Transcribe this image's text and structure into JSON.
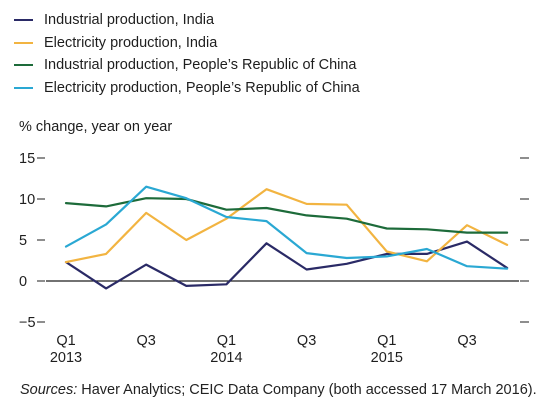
{
  "chart_data": {
    "type": "line",
    "ylabel": "% change, year on year",
    "ylim": [
      -5,
      15
    ],
    "y_ticks": [
      "15",
      "10",
      "5",
      "0",
      "−5"
    ],
    "y_tick_values": [
      15,
      10,
      5,
      0,
      -5
    ],
    "x": [
      "2013Q1",
      "2013Q2",
      "2013Q3",
      "2013Q4",
      "2014Q1",
      "2014Q2",
      "2014Q3",
      "2014Q4",
      "2015Q1",
      "2015Q2",
      "2015Q3",
      "2015Q4"
    ],
    "x_tick_labels": [
      {
        "label": "Q1",
        "year": "2013",
        "index": 0
      },
      {
        "label": "Q3",
        "year": "",
        "index": 2
      },
      {
        "label": "Q1",
        "year": "2014",
        "index": 4
      },
      {
        "label": "Q3",
        "year": "",
        "index": 6
      },
      {
        "label": "Q1",
        "year": "2015",
        "index": 8
      },
      {
        "label": "Q3",
        "year": "",
        "index": 10
      }
    ],
    "series": [
      {
        "name": "Industrial production, India",
        "color": "#2a2a66",
        "values": [
          2.3,
          -0.9,
          2.0,
          -0.6,
          -0.4,
          4.6,
          1.4,
          2.1,
          3.3,
          3.3,
          4.8,
          1.6
        ]
      },
      {
        "name": "Electricity production, India",
        "color": "#f2b441",
        "values": [
          2.3,
          3.3,
          8.3,
          5.0,
          7.6,
          11.2,
          9.4,
          9.3,
          3.6,
          2.4,
          6.8,
          4.4
        ]
      },
      {
        "name": "Industrial production, People’s Republic of China",
        "color": "#1d6b3a",
        "values": [
          9.5,
          9.1,
          10.1,
          10.0,
          8.7,
          8.9,
          8.0,
          7.6,
          6.4,
          6.3,
          5.9,
          5.9
        ]
      },
      {
        "name": "Electricity production, People’s Republic of China",
        "color": "#2aa8d3",
        "values": [
          4.2,
          6.9,
          11.5,
          10.1,
          7.8,
          7.3,
          3.4,
          2.8,
          3.0,
          3.9,
          1.8,
          1.5
        ]
      }
    ],
    "grid": false,
    "legend_position": "top-left"
  },
  "source": {
    "prefix": "Sources:",
    "text": " Haver Analytics; CEIC Data Company (both accessed 17 March 2016)."
  }
}
